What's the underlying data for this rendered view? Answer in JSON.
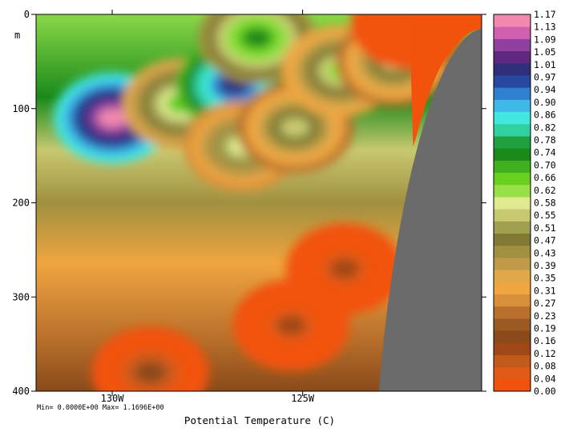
{
  "chart_data": {
    "type": "heatmap",
    "title": "",
    "xlabel": "Potential Temperature (C)",
    "ylabel": "m",
    "x_ticks": [
      "130W",
      "125W"
    ],
    "x_tick_values": [
      -130,
      -125
    ],
    "xlim": [
      -132,
      -120.3
    ],
    "y_ticks": [
      "0",
      "100",
      "200",
      "300",
      "400"
    ],
    "y_tick_values": [
      0,
      100,
      200,
      300,
      400
    ],
    "ylim": [
      400,
      0
    ],
    "stats": "Min= 0.0000E+00  Max= 1.1696E+00",
    "min": 0.0,
    "max": 1.1696,
    "land_mask_color": "#6b6b6b",
    "colorbar": {
      "levels": [
        "0.00",
        "0.04",
        "0.08",
        "0.12",
        "0.16",
        "0.19",
        "0.23",
        "0.27",
        "0.31",
        "0.35",
        "0.39",
        "0.43",
        "0.47",
        "0.51",
        "0.55",
        "0.58",
        "0.62",
        "0.66",
        "0.70",
        "0.74",
        "0.78",
        "0.82",
        "0.86",
        "0.90",
        "0.94",
        "0.97",
        "1.01",
        "1.05",
        "1.09",
        "1.13",
        "1.17"
      ],
      "colors": [
        "#f2520c",
        "#e05a18",
        "#c25a1c",
        "#a04818",
        "#8a4a1a",
        "#9a5a22",
        "#b8702c",
        "#d8903a",
        "#f0a540",
        "#e0a848",
        "#c09a48",
        "#a09040",
        "#807a34",
        "#a0a050",
        "#c8c870",
        "#e0e890",
        "#98e048",
        "#6ad020",
        "#40b020",
        "#1a8a1a",
        "#20a040",
        "#30d0a0",
        "#40e8e0",
        "#40b8e8",
        "#3080d0",
        "#2848a0",
        "#30307a",
        "#602880",
        "#9040a0",
        "#d060b0",
        "#f088b0"
      ]
    },
    "features": [
      {
        "lon": -130.0,
        "depth": 110,
        "value": 1.17
      },
      {
        "lon": -128.2,
        "depth": 95,
        "value": 0.66
      },
      {
        "lon": -126.8,
        "depth": 75,
        "value": 1.01
      },
      {
        "lon": -126.6,
        "depth": 140,
        "value": 0.58
      },
      {
        "lon": -126.2,
        "depth": 25,
        "value": 0.74
      },
      {
        "lon": -125.2,
        "depth": 120,
        "value": 0.55
      },
      {
        "lon": -124.0,
        "depth": 60,
        "value": 0.62
      },
      {
        "lon": -122.6,
        "depth": 50,
        "value": 0.55
      },
      {
        "lon": -129.0,
        "depth": 380,
        "value": 0.16
      },
      {
        "lon": -125.3,
        "depth": 330,
        "value": 0.12
      },
      {
        "lon": -123.9,
        "depth": 270,
        "value": 0.12
      },
      {
        "lon": -122.2,
        "depth": 10,
        "value": 0.0
      }
    ]
  }
}
